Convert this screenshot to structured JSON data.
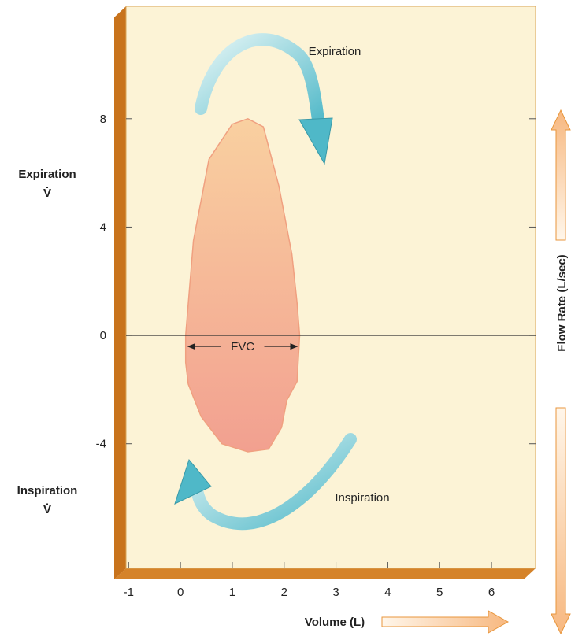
{
  "chart_data": {
    "type": "loop",
    "x_label": "Volume (L)",
    "y_label": "Flow Rate (L/sec)",
    "upper_y_label": [
      "Expiration",
      "V̇"
    ],
    "lower_y_label": [
      "Inspiration",
      "V̇"
    ],
    "annotations": [
      "Expiration",
      "Inspiration",
      "FVC"
    ],
    "x": [
      0.1,
      0.25,
      0.55,
      1.0,
      1.3,
      1.6,
      1.9,
      2.15,
      2.25,
      2.3,
      2.25,
      2.05,
      1.95,
      1.7,
      1.3,
      0.8,
      0.4,
      0.15,
      0.1,
      0.1
    ],
    "values": [
      0,
      3.5,
      6.5,
      7.8,
      8,
      7.7,
      5.5,
      3,
      1.2,
      0,
      -1.7,
      -2.4,
      -3.4,
      -4.2,
      -4.3,
      -4.0,
      -3.0,
      -1.8,
      -1.0,
      0
    ],
    "color": "#f0a080",
    "xlim": [
      -1.05,
      6.85
    ],
    "ylim": [
      -8.6,
      12.15
    ],
    "xticks": [
      -1,
      0,
      1,
      2,
      3,
      4,
      5,
      6
    ],
    "yticks": [
      -4,
      0,
      4,
      8
    ]
  }
}
